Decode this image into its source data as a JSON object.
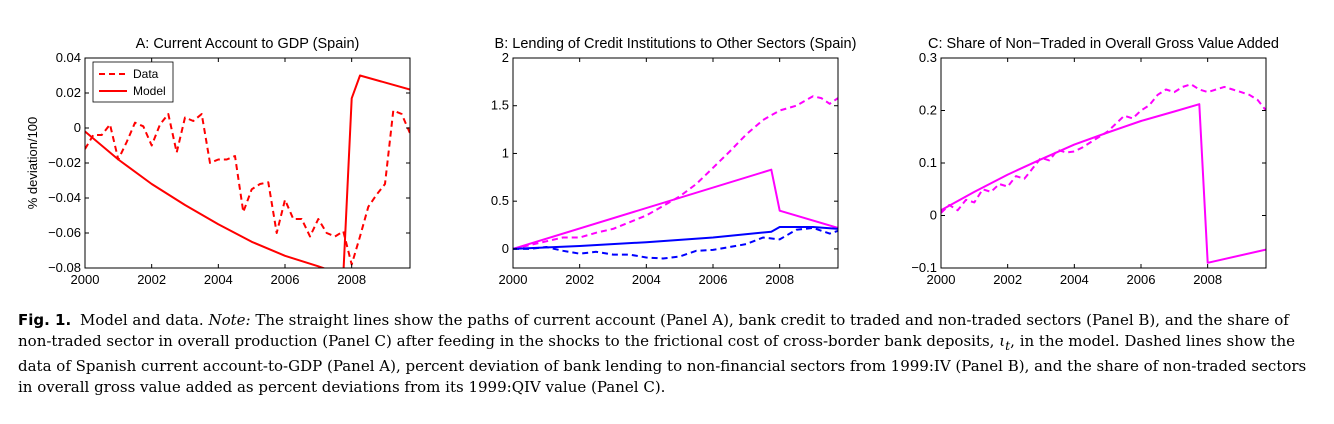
{
  "chart_data": [
    {
      "type": "line",
      "title": "A: Current Account to GDP (Spain)",
      "ylabel": "% deviation/100",
      "xlabel": "",
      "xlim": [
        2000,
        2009.75
      ],
      "ylim": [
        -0.08,
        0.04
      ],
      "xticks": [
        2000,
        2002,
        2004,
        2006,
        2008
      ],
      "xtick_labels": [
        "2000",
        "2002",
        "2004",
        "2006",
        "2008"
      ],
      "yticks": [
        -0.08,
        -0.06,
        -0.04,
        -0.02,
        0,
        0.02,
        0.04
      ],
      "ytick_labels": [
        "−0.08",
        "−0.06",
        "−0.04",
        "−0.02",
        "0",
        "0.02",
        "0.04"
      ],
      "legend": {
        "position": "top-left",
        "entries": [
          "Data",
          "Model"
        ]
      },
      "series": [
        {
          "name": "Data",
          "color": "#ff0000",
          "style": "dashed",
          "x": [
            2000.0,
            2000.25,
            2000.5,
            2000.75,
            2001.0,
            2001.25,
            2001.5,
            2001.75,
            2002.0,
            2002.25,
            2002.5,
            2002.75,
            2003.0,
            2003.25,
            2003.5,
            2003.75,
            2004.0,
            2004.25,
            2004.5,
            2004.75,
            2005.0,
            2005.25,
            2005.5,
            2005.75,
            2006.0,
            2006.25,
            2006.5,
            2006.75,
            2007.0,
            2007.25,
            2007.5,
            2007.75,
            2008.0,
            2008.25,
            2008.5,
            2008.75,
            2009.0,
            2009.25,
            2009.5,
            2009.75
          ],
          "y": [
            -0.012,
            -0.004,
            -0.004,
            0.002,
            -0.018,
            -0.008,
            0.003,
            0.001,
            -0.01,
            0.002,
            0.008,
            -0.014,
            0.006,
            0.004,
            0.008,
            -0.02,
            -0.018,
            -0.018,
            -0.016,
            -0.048,
            -0.035,
            -0.032,
            -0.031,
            -0.06,
            -0.041,
            -0.052,
            -0.052,
            -0.062,
            -0.052,
            -0.06,
            -0.062,
            -0.059,
            -0.078,
            -0.062,
            -0.045,
            -0.038,
            -0.032,
            0.01,
            0.008,
            -0.003
          ]
        },
        {
          "name": "Model",
          "color": "#ff0000",
          "style": "solid",
          "x": [
            2000.0,
            2001.0,
            2002.0,
            2003.0,
            2004.0,
            2005.0,
            2006.0,
            2007.0,
            2007.75,
            2008.0,
            2008.25,
            2009.75
          ],
          "y": [
            -0.002,
            -0.018,
            -0.032,
            -0.044,
            -0.055,
            -0.065,
            -0.073,
            -0.079,
            -0.084,
            0.017,
            0.03,
            0.022
          ]
        }
      ]
    },
    {
      "type": "line",
      "title": "B: Lending of Credit Institutions to Other Sectors (Spain)",
      "ylabel": "",
      "xlabel": "",
      "xlim": [
        2000,
        2009.75
      ],
      "ylim": [
        -0.2,
        2
      ],
      "xticks": [
        2000,
        2002,
        2004,
        2006,
        2008
      ],
      "xtick_labels": [
        "2000",
        "2002",
        "2004",
        "2006",
        "2008"
      ],
      "yticks": [
        0,
        0.5,
        1,
        1.5,
        2
      ],
      "ytick_labels": [
        "0",
        "0.5",
        "1",
        "1.5",
        "2"
      ],
      "series": [
        {
          "color": "#ff00ff",
          "style": "dashed",
          "x": [
            2000.0,
            2000.5,
            2001.0,
            2001.5,
            2002.0,
            2002.5,
            2003.0,
            2003.5,
            2004.0,
            2004.5,
            2005.0,
            2005.5,
            2006.0,
            2006.5,
            2007.0,
            2007.5,
            2008.0,
            2008.5,
            2009.0,
            2009.25,
            2009.5,
            2009.75
          ],
          "y": [
            0.0,
            0.04,
            0.08,
            0.12,
            0.12,
            0.17,
            0.21,
            0.28,
            0.35,
            0.45,
            0.55,
            0.68,
            0.85,
            1.02,
            1.2,
            1.35,
            1.45,
            1.5,
            1.6,
            1.58,
            1.52,
            1.58
          ]
        },
        {
          "color": "#ff00ff",
          "style": "solid",
          "x": [
            2000.0,
            2007.75,
            2008.0,
            2009.75
          ],
          "y": [
            0.0,
            0.83,
            0.4,
            0.22
          ]
        },
        {
          "color": "#0000ff",
          "style": "dashed",
          "x": [
            2000.0,
            2000.5,
            2001.0,
            2001.5,
            2002.0,
            2002.5,
            2003.0,
            2003.5,
            2004.0,
            2004.5,
            2005.0,
            2005.5,
            2006.0,
            2006.5,
            2007.0,
            2007.5,
            2008.0,
            2008.5,
            2009.0,
            2009.5,
            2009.75
          ],
          "y": [
            0.0,
            0.0,
            0.02,
            -0.02,
            -0.05,
            -0.03,
            -0.06,
            -0.06,
            -0.09,
            -0.1,
            -0.08,
            -0.02,
            -0.01,
            0.02,
            0.05,
            0.12,
            0.1,
            0.2,
            0.22,
            0.16,
            0.19
          ]
        },
        {
          "color": "#0000ff",
          "style": "solid",
          "x": [
            2000.0,
            2002.0,
            2004.0,
            2006.0,
            2007.75,
            2008.0,
            2009.0,
            2009.75
          ],
          "y": [
            0.0,
            0.03,
            0.07,
            0.12,
            0.18,
            0.23,
            0.23,
            0.21
          ]
        }
      ]
    },
    {
      "type": "line",
      "title": "C: Share of Non−Traded in Overall Gross Value Added",
      "ylabel": "",
      "xlabel": "",
      "xlim": [
        2000,
        2009.75
      ],
      "ylim": [
        -0.1,
        0.3
      ],
      "xticks": [
        2000,
        2002,
        2004,
        2006,
        2008
      ],
      "xtick_labels": [
        "2000",
        "2002",
        "2004",
        "2006",
        "2008"
      ],
      "yticks": [
        -0.1,
        0,
        0.1,
        0.2,
        0.3
      ],
      "ytick_labels": [
        "−0.1",
        "0",
        "0.1",
        "0.2",
        "0.3"
      ],
      "series": [
        {
          "color": "#ff00ff",
          "style": "dashed",
          "x": [
            2000.0,
            2000.25,
            2000.5,
            2000.75,
            2001.0,
            2001.25,
            2001.5,
            2001.75,
            2002.0,
            2002.25,
            2002.5,
            2002.75,
            2003.0,
            2003.25,
            2003.5,
            2003.75,
            2004.0,
            2004.25,
            2004.5,
            2004.75,
            2005.0,
            2005.25,
            2005.5,
            2005.75,
            2006.0,
            2006.25,
            2006.5,
            2006.75,
            2007.0,
            2007.25,
            2007.5,
            2007.75,
            2008.0,
            2008.25,
            2008.5,
            2008.75,
            2009.0,
            2009.25,
            2009.5,
            2009.75
          ],
          "y": [
            0.005,
            0.02,
            0.01,
            0.03,
            0.025,
            0.05,
            0.045,
            0.06,
            0.055,
            0.075,
            0.07,
            0.09,
            0.11,
            0.105,
            0.125,
            0.12,
            0.122,
            0.13,
            0.14,
            0.15,
            0.16,
            0.175,
            0.19,
            0.185,
            0.2,
            0.21,
            0.23,
            0.24,
            0.235,
            0.245,
            0.25,
            0.24,
            0.235,
            0.24,
            0.245,
            0.24,
            0.235,
            0.23,
            0.22,
            0.2
          ]
        },
        {
          "color": "#ff00ff",
          "style": "solid",
          "x": [
            2000.0,
            2001.0,
            2002.0,
            2003.0,
            2004.0,
            2005.0,
            2006.0,
            2007.0,
            2007.75,
            2008.0,
            2009.75
          ],
          "y": [
            0.01,
            0.045,
            0.078,
            0.107,
            0.135,
            0.158,
            0.18,
            0.198,
            0.212,
            -0.09,
            -0.065
          ]
        }
      ]
    }
  ],
  "caption": {
    "fig_label": "Fig. 1.",
    "text_1": "Model and data.",
    "note_label": "Note:",
    "text_2": "The straight lines show the paths of current account (Panel A), bank credit to traded and non-traded sectors (Panel B), and the share of non-traded sector in overall production (Panel C) after feeding in the shocks to the frictional cost of cross-border bank deposits,",
    "symbol": "ι",
    "symbol_sub": "t",
    "text_3": ", in the model. Dashed lines show the data of Spanish current account-to-GDP (Panel A), percent deviation of bank lending to non-financial sectors from 1999:IV (Panel B), and the share of non-traded sectors in overall gross value added as percent deviations from its 1999:QIV value (Panel C)."
  }
}
